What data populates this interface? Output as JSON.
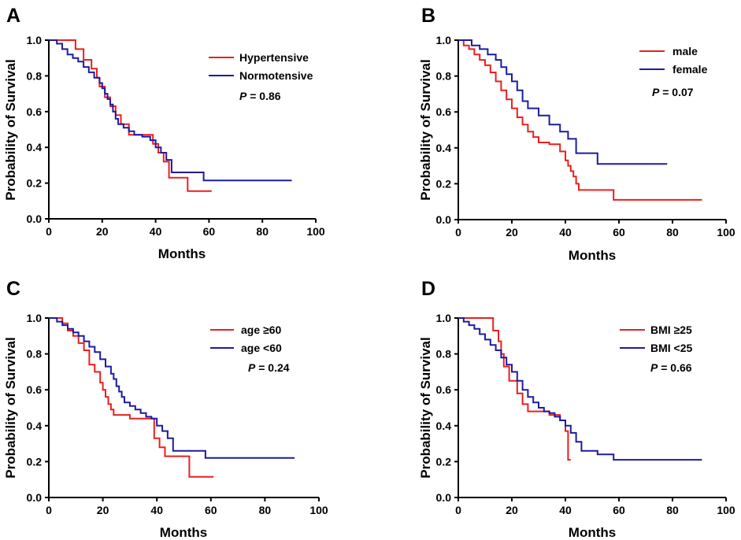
{
  "chart_data": [
    {
      "type": "line",
      "panel": "A",
      "xlabel": "Months",
      "ylabel": "Probability of Survival",
      "xlim": [
        0,
        100
      ],
      "ylim": [
        0,
        1.0
      ],
      "xticks": [
        "0",
        "20",
        "40",
        "60",
        "80",
        "100"
      ],
      "yticks": [
        "0.0",
        "0.2",
        "0.4",
        "0.6",
        "0.8",
        "1.0"
      ],
      "p_label": "P",
      "p_value": " = 0.86",
      "series": [
        {
          "name": "Hypertensive",
          "color": "#e8201f",
          "x": [
            0,
            10,
            13,
            16,
            18,
            19,
            21,
            23,
            25,
            27,
            30,
            39,
            41,
            43,
            45,
            52,
            61
          ],
          "y": [
            1.0,
            0.95,
            0.89,
            0.84,
            0.79,
            0.74,
            0.68,
            0.63,
            0.58,
            0.53,
            0.47,
            0.42,
            0.37,
            0.32,
            0.23,
            0.155,
            0.155
          ]
        },
        {
          "name": "Normotensive",
          "color": "#1c1c9e",
          "x": [
            0,
            3,
            5,
            7,
            9,
            11,
            13,
            15,
            17,
            19,
            20,
            21,
            22,
            23,
            24,
            25,
            26,
            28,
            30,
            32,
            35,
            38,
            40,
            42,
            44,
            46,
            58,
            91
          ],
          "y": [
            1.0,
            0.98,
            0.95,
            0.92,
            0.9,
            0.88,
            0.85,
            0.82,
            0.79,
            0.76,
            0.73,
            0.7,
            0.67,
            0.64,
            0.6,
            0.56,
            0.53,
            0.51,
            0.49,
            0.47,
            0.46,
            0.44,
            0.4,
            0.37,
            0.33,
            0.26,
            0.215,
            0.215
          ]
        }
      ]
    },
    {
      "type": "line",
      "panel": "B",
      "xlabel": "Months",
      "ylabel": "Probability of Survival",
      "xlim": [
        0,
        100
      ],
      "ylim": [
        0,
        1.0
      ],
      "xticks": [
        "0",
        "20",
        "40",
        "60",
        "80",
        "100"
      ],
      "yticks": [
        "0.0",
        "0.2",
        "0.4",
        "0.6",
        "0.8",
        "1.0"
      ],
      "p_label": "P",
      "p_value": " = 0.07",
      "series": [
        {
          "name": "male",
          "color": "#e8201f",
          "x": [
            0,
            2,
            4,
            6,
            8,
            10,
            12,
            14,
            16,
            18,
            20,
            22,
            24,
            26,
            28,
            30,
            34,
            38,
            40,
            41,
            42,
            43,
            44,
            45,
            58,
            91
          ],
          "y": [
            1.0,
            0.97,
            0.95,
            0.92,
            0.89,
            0.86,
            0.82,
            0.77,
            0.72,
            0.67,
            0.62,
            0.57,
            0.53,
            0.49,
            0.46,
            0.43,
            0.42,
            0.38,
            0.33,
            0.3,
            0.27,
            0.24,
            0.2,
            0.165,
            0.11,
            0.11
          ]
        },
        {
          "name": "female",
          "color": "#1c1c9e",
          "x": [
            0,
            5,
            8,
            11,
            14,
            16,
            18,
            20,
            22,
            24,
            26,
            30,
            34,
            38,
            41,
            44,
            52,
            78
          ],
          "y": [
            1.0,
            0.97,
            0.95,
            0.92,
            0.89,
            0.85,
            0.81,
            0.77,
            0.72,
            0.66,
            0.62,
            0.58,
            0.53,
            0.49,
            0.45,
            0.37,
            0.31,
            0.31
          ]
        }
      ]
    },
    {
      "type": "line",
      "panel": "C",
      "xlabel": "Months",
      "ylabel": "Probability of Survival",
      "xlim": [
        0,
        100
      ],
      "ylim": [
        0,
        1.0
      ],
      "xticks": [
        "0",
        "20",
        "40",
        "60",
        "80",
        "100"
      ],
      "yticks": [
        "0.0",
        "0.2",
        "0.4",
        "0.6",
        "0.8",
        "1.0"
      ],
      "p_label": "P",
      "p_value": " = 0.24",
      "series": [
        {
          "name": "age ≥60",
          "color": "#e8201f",
          "x": [
            0,
            5,
            7,
            9,
            11,
            13,
            15,
            17,
            19,
            20,
            21,
            22,
            23,
            24,
            26,
            30,
            39,
            41,
            43,
            52,
            61
          ],
          "y": [
            1.0,
            0.97,
            0.93,
            0.9,
            0.86,
            0.82,
            0.74,
            0.7,
            0.64,
            0.6,
            0.56,
            0.52,
            0.49,
            0.46,
            0.46,
            0.44,
            0.33,
            0.28,
            0.23,
            0.115,
            0.115
          ]
        },
        {
          "name": "age <60",
          "color": "#1c1c9e",
          "x": [
            0,
            3,
            5,
            7,
            9,
            11,
            13,
            15,
            17,
            19,
            21,
            23,
            24,
            25,
            26,
            27,
            28,
            30,
            32,
            34,
            36,
            38,
            40,
            42,
            44,
            46,
            58,
            91
          ],
          "y": [
            1.0,
            0.98,
            0.96,
            0.94,
            0.92,
            0.9,
            0.87,
            0.84,
            0.81,
            0.77,
            0.73,
            0.69,
            0.66,
            0.62,
            0.59,
            0.56,
            0.53,
            0.51,
            0.49,
            0.47,
            0.45,
            0.44,
            0.4,
            0.37,
            0.33,
            0.26,
            0.22,
            0.22
          ]
        }
      ]
    },
    {
      "type": "line",
      "panel": "D",
      "xlabel": "Months",
      "ylabel": "Probability of Survival",
      "xlim": [
        0,
        100
      ],
      "ylim": [
        0,
        1.0
      ],
      "xticks": [
        "0",
        "20",
        "40",
        "60",
        "80",
        "100"
      ],
      "yticks": [
        "0.0",
        "0.2",
        "0.4",
        "0.6",
        "0.8",
        "1.0"
      ],
      "p_label": "P",
      "p_value": " = 0.66",
      "series": [
        {
          "name": "BMI ≥25",
          "color": "#e8201f",
          "x": [
            0,
            13,
            15,
            16,
            17,
            19,
            22,
            24,
            26,
            28,
            34,
            38,
            40,
            41,
            42
          ],
          "y": [
            1.0,
            0.93,
            0.87,
            0.8,
            0.73,
            0.65,
            0.58,
            0.52,
            0.48,
            0.48,
            0.46,
            0.43,
            0.37,
            0.21,
            0.21
          ]
        },
        {
          "name": "BMI <25",
          "color": "#1c1c9e",
          "x": [
            0,
            2,
            4,
            6,
            8,
            10,
            12,
            14,
            16,
            18,
            20,
            22,
            24,
            26,
            28,
            30,
            32,
            34,
            36,
            38,
            40,
            42,
            44,
            46,
            52,
            58,
            91
          ],
          "y": [
            1.0,
            0.98,
            0.96,
            0.94,
            0.91,
            0.88,
            0.85,
            0.82,
            0.78,
            0.74,
            0.7,
            0.65,
            0.6,
            0.56,
            0.53,
            0.5,
            0.48,
            0.47,
            0.45,
            0.43,
            0.4,
            0.36,
            0.31,
            0.26,
            0.24,
            0.21,
            0.21
          ]
        }
      ]
    }
  ]
}
